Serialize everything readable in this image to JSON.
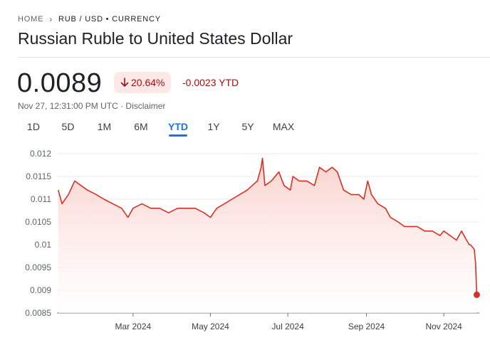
{
  "breadcrumb": {
    "home": "HOME",
    "separator": "›",
    "current": "RUB / USD • CURRENCY"
  },
  "page_title": "Russian Ruble to United States Dollar",
  "quote": {
    "price": "0.0089",
    "change_percent": "20.64%",
    "change_direction": "down",
    "change_abs": "-0.0023 YTD",
    "timestamp": "Nov 27, 12:31:00 PM UTC",
    "disclaimer_sep": "·",
    "disclaimer": "Disclaimer"
  },
  "ranges": [
    "1D",
    "5D",
    "1M",
    "6M",
    "YTD",
    "1Y",
    "5Y",
    "MAX"
  ],
  "active_range": "YTD",
  "colors": {
    "line": "#d93025",
    "fill_top": "#f9d0cb",
    "negative_text": "#a50e0e",
    "chip_bg": "#fce8e6",
    "accent": "#1a73e8"
  },
  "chart_data": {
    "type": "area",
    "x": [
      "2024-01-02",
      "2024-01-05",
      "2024-01-10",
      "2024-01-15",
      "2024-01-20",
      "2024-01-25",
      "2024-02-01",
      "2024-02-07",
      "2024-02-14",
      "2024-02-21",
      "2024-02-26",
      "2024-03-01",
      "2024-03-08",
      "2024-03-15",
      "2024-03-22",
      "2024-03-29",
      "2024-04-05",
      "2024-04-12",
      "2024-04-19",
      "2024-04-26",
      "2024-05-01",
      "2024-05-06",
      "2024-05-12",
      "2024-05-18",
      "2024-05-24",
      "2024-05-30",
      "2024-06-03",
      "2024-06-07",
      "2024-06-10",
      "2024-06-11",
      "2024-06-13",
      "2024-06-18",
      "2024-06-24",
      "2024-06-28",
      "2024-07-03",
      "2024-07-05",
      "2024-07-10",
      "2024-07-16",
      "2024-07-22",
      "2024-07-26",
      "2024-07-31",
      "2024-08-05",
      "2024-08-09",
      "2024-08-14",
      "2024-08-20",
      "2024-08-26",
      "2024-08-30",
      "2024-09-02",
      "2024-09-05",
      "2024-09-10",
      "2024-09-16",
      "2024-09-20",
      "2024-09-26",
      "2024-10-01",
      "2024-10-07",
      "2024-10-11",
      "2024-10-17",
      "2024-10-23",
      "2024-10-29",
      "2024-11-01",
      "2024-11-06",
      "2024-11-11",
      "2024-11-15",
      "2024-11-19",
      "2024-11-21",
      "2024-11-22",
      "2024-11-25",
      "2024-11-26",
      "2024-11-27"
    ],
    "y": [
      0.0112,
      0.0109,
      0.0111,
      0.0114,
      0.0113,
      0.0112,
      0.0111,
      0.011,
      0.0109,
      0.0108,
      0.0106,
      0.0108,
      0.0109,
      0.0108,
      0.0108,
      0.0107,
      0.0108,
      0.0108,
      0.0108,
      0.0107,
      0.0106,
      0.0108,
      0.0109,
      0.011,
      0.0111,
      0.0112,
      0.0113,
      0.0114,
      0.0117,
      0.0119,
      0.0113,
      0.0114,
      0.0116,
      0.0113,
      0.0112,
      0.0115,
      0.0114,
      0.0114,
      0.0113,
      0.0117,
      0.0116,
      0.0117,
      0.0116,
      0.0112,
      0.0111,
      0.0111,
      0.011,
      0.0114,
      0.0111,
      0.0109,
      0.0108,
      0.0106,
      0.0105,
      0.0104,
      0.0104,
      0.0104,
      0.0103,
      0.0103,
      0.0102,
      0.0103,
      0.0102,
      0.0101,
      0.0103,
      0.0101,
      0.01,
      0.01,
      0.0099,
      0.0096,
      0.0089
    ],
    "ylim": [
      0.0085,
      0.012
    ],
    "y_ticks": [
      "0.012",
      "0.0115",
      "0.011",
      "0.0105",
      "0.01",
      "0.0095",
      "0.009",
      "0.0085"
    ],
    "x_tick_labels": [
      {
        "label": "Mar 2024",
        "date": "2024-03-01"
      },
      {
        "label": "May 2024",
        "date": "2024-05-01"
      },
      {
        "label": "Jul 2024",
        "date": "2024-07-01"
      },
      {
        "label": "Sep 2024",
        "date": "2024-09-01"
      },
      {
        "label": "Nov 2024",
        "date": "2024-11-01"
      }
    ],
    "x_range": [
      "2024-01-01",
      "2024-11-29"
    ],
    "grid": true,
    "legend": "none"
  }
}
